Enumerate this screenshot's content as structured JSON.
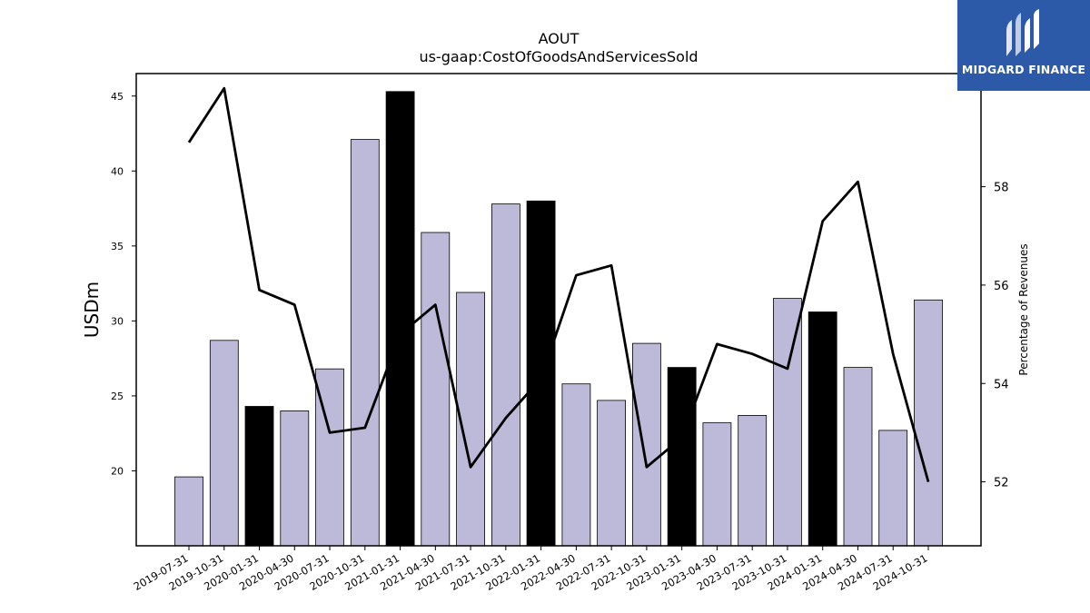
{
  "chart_data": {
    "type": "bar",
    "title": "AOUT",
    "subtitle": "us-gaap:CostOfGoodsAndServicesSold",
    "ylabel": "USDm",
    "ylabel_right": "Percentage of Revenues",
    "categories": [
      "2019-07-31",
      "2019-10-31",
      "2020-01-31",
      "2020-04-30",
      "2020-07-31",
      "2020-10-31",
      "2021-01-31",
      "2021-04-30",
      "2021-07-31",
      "2021-10-31",
      "2022-01-31",
      "2022-04-30",
      "2022-07-31",
      "2022-10-31",
      "2023-01-31",
      "2023-04-30",
      "2023-07-31",
      "2023-10-31",
      "2024-01-31",
      "2024-04-30",
      "2024-07-31",
      "2024-10-31"
    ],
    "values": [
      19.6,
      28.7,
      24.3,
      24.0,
      26.8,
      42.1,
      45.3,
      35.9,
      31.9,
      37.8,
      38.0,
      25.8,
      24.7,
      28.5,
      26.9,
      23.2,
      23.7,
      31.5,
      30.6,
      26.9,
      22.7,
      31.4
    ],
    "highlight": [
      false,
      false,
      true,
      false,
      false,
      false,
      true,
      false,
      false,
      false,
      true,
      false,
      false,
      false,
      true,
      false,
      false,
      false,
      true,
      false,
      false,
      false
    ],
    "bar_color": "#bcb9d9",
    "highlight_color": "#000000",
    "ylim": [
      15,
      46.5
    ],
    "yticks": [
      20,
      25,
      30,
      35,
      40,
      45
    ],
    "line_series": {
      "name": "",
      "axis": "right",
      "color": "#000000",
      "values": [
        58.9,
        60.0,
        55.9,
        55.6,
        53.0,
        53.1,
        55.0,
        55.6,
        52.3,
        53.3,
        54.1,
        56.2,
        56.4,
        52.3,
        52.9,
        54.8,
        54.6,
        54.3,
        57.3,
        58.1,
        54.6,
        52.0
      ]
    },
    "ylim_right": [
      50.7,
      60.3
    ],
    "yticks_right": [
      52,
      54,
      56,
      58
    ],
    "grid": false,
    "legend": "none"
  },
  "logo": {
    "text": "MIDGARD FINANCE",
    "color": "#2d5aa8"
  }
}
